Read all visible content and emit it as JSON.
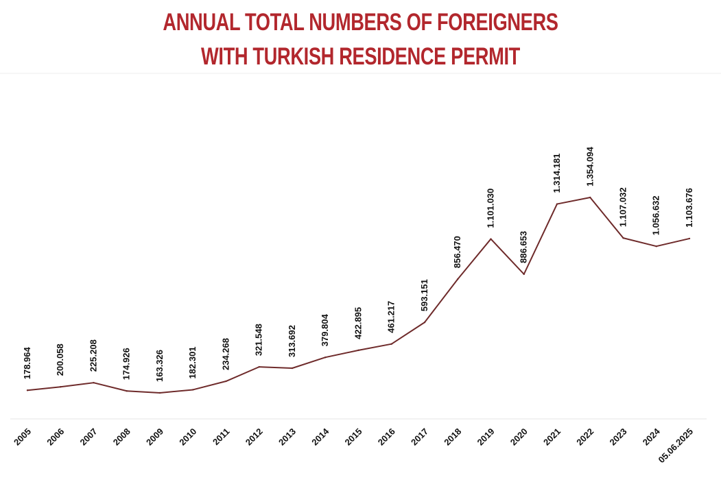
{
  "header": {
    "title_line1": "ANNUAL TOTAL NUMBERS OF FOREIGNERS",
    "title_line2": "WITH TURKISH RESIDENCE PERMIT",
    "title_color": "#b2272d"
  },
  "chart_data": {
    "type": "line",
    "title": "ANNUAL TOTAL NUMBERS OF FOREIGNERS WITH TURKISH RESIDENCE PERMIT",
    "xlabel": "",
    "ylabel": "",
    "categories": [
      "2005",
      "2006",
      "2007",
      "2008",
      "2009",
      "2010",
      "2011",
      "2012",
      "2013",
      "2014",
      "2015",
      "2016",
      "2017",
      "2018",
      "2019",
      "2020",
      "2021",
      "2022",
      "2023",
      "2024",
      "05.06.2025"
    ],
    "values": [
      178964,
      200058,
      225208,
      174926,
      163326,
      182301,
      234268,
      321548,
      313692,
      379804,
      422895,
      461217,
      593151,
      856470,
      1101030,
      886653,
      1314181,
      1354094,
      1107032,
      1056632,
      1103676
    ],
    "value_labels": [
      "178.964",
      "200.058",
      "225.208",
      "174.926",
      "163.326",
      "182.301",
      "234.268",
      "321.548",
      "313.692",
      "379.804",
      "422.895",
      "461.217",
      "593.151",
      "856.470",
      "1.101.030",
      "886.653",
      "1.314.181",
      "1.354.094",
      "1.107.032",
      "1.056.632",
      "1.103.676"
    ],
    "line_color": "#6e2a2a",
    "grid": false,
    "legend": "none"
  }
}
